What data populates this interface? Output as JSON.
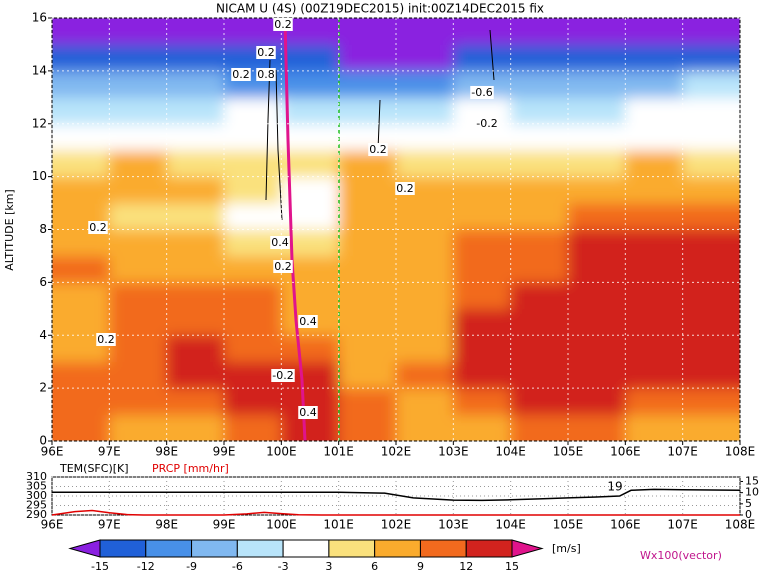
{
  "chart_data": [
    {
      "type": "heatmap",
      "title": "NICAM U (4S) (00Z19DEC2015) init:00Z14DEC2015 fix",
      "ylabel": "ALTITUDE [km]",
      "xlim": [
        96,
        108
      ],
      "xticks": [
        {
          "value": 96,
          "label": "96E"
        },
        {
          "value": 97,
          "label": "97E"
        },
        {
          "value": 98,
          "label": "98E"
        },
        {
          "value": 99,
          "label": "99E"
        },
        {
          "value": 100,
          "label": "100E"
        },
        {
          "value": 101,
          "label": "101E"
        },
        {
          "value": 102,
          "label": "102E"
        },
        {
          "value": 103,
          "label": "103E"
        },
        {
          "value": 104,
          "label": "104E"
        },
        {
          "value": 105,
          "label": "105E"
        },
        {
          "value": 106,
          "label": "106E"
        },
        {
          "value": 107,
          "label": "107E"
        },
        {
          "value": 108,
          "label": "108E"
        }
      ],
      "ylim": [
        0,
        16
      ],
      "yticks": [
        0,
        2,
        4,
        6,
        8,
        10,
        12,
        14,
        16
      ],
      "grid": true,
      "x": [
        96.5,
        97.5,
        98.5,
        99.5,
        100.5,
        101.5,
        102.5,
        103.5,
        104.5,
        105.5,
        106.5,
        107.5
      ],
      "y": [
        0.5,
        1.5,
        2.5,
        3.5,
        4.5,
        5.5,
        6.5,
        7.5,
        8.5,
        9.5,
        10.5,
        11.5,
        12.5,
        13.5,
        14.5,
        15.5
      ],
      "z": [
        [
          9,
          8,
          7,
          10,
          12,
          9,
          7,
          8,
          10,
          9,
          8,
          8
        ],
        [
          10,
          10,
          9,
          13,
          13,
          9,
          8,
          11,
          12,
          12,
          11,
          11
        ],
        [
          9,
          10,
          12,
          13,
          12,
          8,
          9,
          12,
          13,
          13,
          13,
          13
        ],
        [
          8,
          9,
          12,
          11,
          10,
          7,
          8,
          13,
          13,
          13,
          14,
          13
        ],
        [
          8,
          10,
          11,
          10,
          8,
          7,
          8,
          12,
          13,
          13,
          13,
          13
        ],
        [
          8,
          9,
          10,
          9,
          8,
          7,
          8,
          10,
          12,
          13,
          12,
          13
        ],
        [
          9,
          8,
          8,
          7,
          6,
          8,
          7,
          9,
          11,
          13,
          13,
          12
        ],
        [
          8,
          7,
          6,
          3,
          4,
          7,
          8,
          9,
          10,
          12,
          12,
          12
        ],
        [
          7,
          5,
          4,
          2,
          1,
          6,
          7,
          8,
          8,
          9,
          10,
          10
        ],
        [
          6,
          7,
          6,
          4,
          2,
          7,
          8,
          8,
          7,
          8,
          7,
          7
        ],
        [
          5,
          6,
          4,
          3,
          5,
          6,
          5,
          5,
          4,
          5,
          6,
          5
        ],
        [
          1,
          1,
          0,
          -1,
          1,
          2,
          1,
          1,
          -2,
          -1,
          0,
          1
        ],
        [
          -4,
          -5,
          -4,
          -3,
          -5,
          -6,
          -4,
          -3,
          -6,
          -5,
          -3,
          -3
        ],
        [
          -8,
          -9,
          -8,
          -10,
          -12,
          -12,
          -10,
          -8,
          -9,
          -8,
          -7,
          -6
        ],
        [
          -14,
          -14,
          -13,
          -14,
          -15,
          -16,
          -16,
          -15,
          -15,
          -14,
          -14,
          -14
        ],
        [
          -16,
          -16,
          -16,
          -16,
          -16,
          -16,
          -16,
          -16,
          -16,
          -16,
          -16,
          -16
        ]
      ],
      "contour_labels": [
        "0.2",
        "0.2",
        "0.2",
        "0.8",
        "0.2",
        "0.2",
        "0.4",
        "0.2",
        "0.4",
        "-0.2",
        "0.4",
        "0.2",
        "0.2",
        "-0.6",
        "-0.2"
      ],
      "colorbar": {
        "levels": [
          -15,
          -12,
          -9,
          -6,
          -3,
          3,
          6,
          9,
          12,
          15
        ],
        "colors": [
          "#8a20e0",
          "#2060d8",
          "#4890e8",
          "#80b8f0",
          "#b8e4fa",
          "#ffffff",
          "#fae17d",
          "#faab2d",
          "#f26a1e",
          "#d2231e",
          "#e0148c"
        ],
        "unit": "[m/s]"
      },
      "vector_label": "Wx100(vector)"
    },
    {
      "type": "line",
      "xlim": [
        96,
        108
      ],
      "xticks": [
        {
          "value": 96,
          "label": "96E"
        },
        {
          "value": 97,
          "label": "97E"
        },
        {
          "value": 98,
          "label": "98E"
        },
        {
          "value": 99,
          "label": "99E"
        },
        {
          "value": 100,
          "label": "100E"
        },
        {
          "value": 101,
          "label": "101E"
        },
        {
          "value": 102,
          "label": "102E"
        },
        {
          "value": 103,
          "label": "103E"
        },
        {
          "value": 104,
          "label": "104E"
        },
        {
          "value": 105,
          "label": "105E"
        },
        {
          "value": 106,
          "label": "106E"
        },
        {
          "value": 107,
          "label": "107E"
        },
        {
          "value": 108,
          "label": "108E"
        }
      ],
      "ylim": [
        290,
        310
      ],
      "yticks": [
        290,
        295,
        300,
        305,
        310
      ],
      "y2lim": [
        0,
        17
      ],
      "y2ticks": [
        0,
        5,
        10,
        15
      ],
      "annotation": "19",
      "series": [
        {
          "name": "TEM(SFC)[K]",
          "color": "#000000",
          "x": [
            96,
            97,
            98,
            99,
            100,
            101,
            101.8,
            102.3,
            103,
            103.5,
            104,
            104.5,
            105,
            105.5,
            105.9,
            106.1,
            106.5,
            107,
            108
          ],
          "values": [
            302,
            302,
            302,
            302,
            302,
            302,
            301.5,
            299,
            297.8,
            297.7,
            298,
            298.5,
            299,
            299.5,
            300,
            303,
            303.5,
            303.3,
            303
          ]
        },
        {
          "name": "PRCP [mm/hr]",
          "color": "#e00000",
          "axis": "y2",
          "x": [
            96,
            96.4,
            96.7,
            97,
            97.3,
            97.6,
            98,
            99,
            99.4,
            99.7,
            100,
            100.3,
            100.7,
            101,
            108
          ],
          "values": [
            0,
            1.5,
            2,
            1,
            0.2,
            0,
            0,
            0,
            0.5,
            1.2,
            0.6,
            0.1,
            0,
            0,
            0
          ]
        }
      ]
    }
  ]
}
